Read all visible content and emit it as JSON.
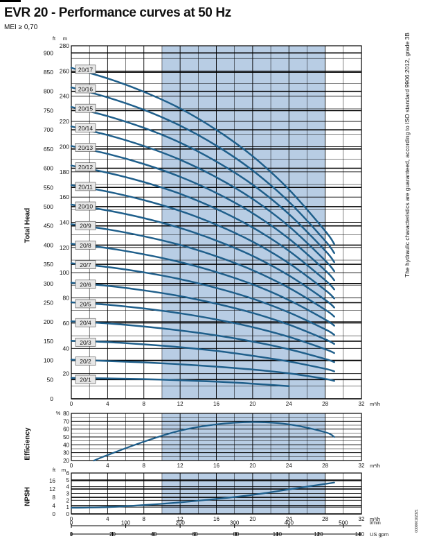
{
  "header": {
    "title": "EVR 20 - Performance curves at 50 Hz",
    "subtitle": "MEI ≥ 0,70"
  },
  "side_note": "The hydraulic characteristics are guaranteed, according to ISO standard 9906:2012, grade 3B",
  "doc_code": "000000102321",
  "colors": {
    "curve": "#1f5f8b",
    "shaded_region": "#b8cde4",
    "grid": "#000000",
    "label_box": "#e6e6e6"
  },
  "chart_data": [
    {
      "type": "line",
      "name": "head",
      "ylabel": "Total Head",
      "y_unit_left": "ft",
      "y_unit_right": "m",
      "x_unit": "m³/h",
      "xlim": [
        0,
        32
      ],
      "ylim": [
        0,
        280
      ],
      "ft_ticks": [
        0,
        50,
        100,
        150,
        200,
        250,
        300,
        350,
        400,
        450,
        500,
        550,
        600,
        650,
        700,
        750,
        800,
        850,
        900
      ],
      "m_ticks": [
        20,
        40,
        60,
        80,
        100,
        120,
        140,
        160,
        180,
        200,
        220,
        240,
        260,
        280
      ],
      "x_ticks": [
        0,
        4,
        8,
        12,
        16,
        20,
        24,
        28,
        32
      ],
      "shaded_x_range": [
        10,
        28
      ],
      "series": [
        {
          "name": "20/1",
          "x": [
            0,
            4,
            8,
            12,
            16,
            20,
            24
          ],
          "y": [
            16.5,
            16.2,
            15.6,
            14.7,
            13.6,
            12.0,
            10.0
          ]
        },
        {
          "name": "20/2",
          "x": [
            0,
            4,
            8,
            12,
            16,
            20,
            24,
            28,
            29
          ],
          "y": [
            31.0,
            30.0,
            28.9,
            27.4,
            25.5,
            23.2,
            20.2,
            15.8,
            14.2
          ]
        },
        {
          "name": "20/3",
          "x": [
            0,
            4,
            8,
            12,
            16,
            20,
            24,
            28,
            29
          ],
          "y": [
            46.0,
            45.0,
            43.2,
            40.9,
            38.0,
            34.1,
            29.6,
            23.8,
            21.8
          ]
        },
        {
          "name": "20/4",
          "x": [
            0,
            4,
            8,
            12,
            16,
            20,
            24,
            28,
            29
          ],
          "y": [
            61.5,
            59.8,
            57.3,
            54.2,
            50.3,
            45.4,
            39.3,
            31.6,
            29.1
          ]
        },
        {
          "name": "20/5",
          "x": [
            0,
            4,
            8,
            12,
            16,
            20,
            24,
            28,
            29
          ],
          "y": [
            76.5,
            74.6,
            71.6,
            67.8,
            62.9,
            56.8,
            49.1,
            39.4,
            36.3
          ]
        },
        {
          "name": "20/6",
          "x": [
            0,
            4,
            8,
            12,
            16,
            20,
            24,
            28,
            29
          ],
          "y": [
            92.0,
            89.6,
            86.0,
            81.4,
            75.4,
            68.1,
            58.8,
            47.2,
            43.5
          ]
        },
        {
          "name": "20/7",
          "x": [
            0,
            4,
            8,
            12,
            16,
            20,
            24,
            28,
            29
          ],
          "y": [
            107.5,
            104.5,
            100.3,
            94.9,
            87.9,
            79.4,
            68.5,
            55.1,
            50.8
          ]
        },
        {
          "name": "20/8",
          "x": [
            0,
            4,
            8,
            12,
            16,
            20,
            24,
            28,
            29
          ],
          "y": [
            123.0,
            119.5,
            114.6,
            108.4,
            100.5,
            90.7,
            78.3,
            62.9,
            58.0
          ]
        },
        {
          "name": "20/9",
          "x": [
            0,
            4,
            8,
            12,
            16,
            20,
            24,
            28,
            29
          ],
          "y": [
            138.5,
            134.4,
            128.9,
            122.0,
            113.0,
            102.0,
            88.0,
            70.7,
            65.2
          ]
        },
        {
          "name": "20/10",
          "x": [
            0,
            4,
            8,
            12,
            16,
            20,
            24,
            28,
            29
          ],
          "y": [
            154.0,
            149.4,
            143.3,
            135.5,
            125.5,
            113.3,
            97.8,
            78.5,
            72.4
          ]
        },
        {
          "name": "20/11",
          "x": [
            0,
            4,
            8,
            12,
            16,
            20,
            24,
            28,
            29
          ],
          "y": [
            169.5,
            164.3,
            157.6,
            149.0,
            138.1,
            124.6,
            107.5,
            86.3,
            79.6
          ]
        },
        {
          "name": "20/12",
          "x": [
            0,
            4,
            8,
            12,
            16,
            20,
            24,
            28,
            29
          ],
          "y": [
            185.0,
            179.3,
            171.9,
            162.6,
            150.6,
            135.9,
            117.3,
            94.1,
            86.8
          ]
        },
        {
          "name": "20/13",
          "x": [
            0,
            4,
            8,
            12,
            16,
            20,
            24,
            28,
            29
          ],
          "y": [
            200.5,
            194.3,
            186.2,
            176.1,
            163.2,
            147.2,
            127.0,
            101.9,
            94.0
          ]
        },
        {
          "name": "20/14",
          "x": [
            0,
            4,
            8,
            12,
            16,
            20,
            24,
            28,
            29
          ],
          "y": [
            216.0,
            209.2,
            200.5,
            189.6,
            175.7,
            158.5,
            136.8,
            109.7,
            101.2
          ]
        },
        {
          "name": "20/15",
          "x": [
            0,
            4,
            8,
            12,
            16,
            20,
            24,
            28,
            29
          ],
          "y": [
            231.5,
            224.2,
            214.9,
            203.2,
            188.2,
            169.8,
            146.5,
            117.5,
            108.4
          ]
        },
        {
          "name": "20/16",
          "x": [
            0,
            4,
            8,
            12,
            16,
            20,
            24,
            28,
            29
          ],
          "y": [
            247.0,
            239.1,
            229.2,
            216.7,
            200.8,
            181.1,
            156.3,
            125.3,
            115.6
          ]
        },
        {
          "name": "20/17",
          "x": [
            0,
            4,
            8,
            12,
            16,
            20,
            24,
            28,
            29
          ],
          "y": [
            262.5,
            254.1,
            243.5,
            230.3,
            213.3,
            192.4,
            166.0,
            133.2,
            122.8
          ]
        }
      ]
    },
    {
      "type": "line",
      "name": "efficiency",
      "ylabel": "Efficiency",
      "y_unit": "%",
      "x_unit": "m³/h",
      "xlim": [
        0,
        32
      ],
      "ylim": [
        20,
        80
      ],
      "y_ticks": [
        20,
        30,
        40,
        50,
        60,
        70,
        80
      ],
      "x_ticks": [
        0,
        4,
        8,
        12,
        16,
        20,
        24,
        28,
        32
      ],
      "shaded_x_range": [
        10,
        28
      ],
      "series": [
        {
          "x": [
            2.5,
            4,
            8,
            12,
            16,
            20,
            24,
            28,
            29
          ],
          "y": [
            20,
            27,
            44,
            58,
            66,
            69,
            66,
            56,
            50
          ]
        }
      ]
    },
    {
      "type": "line",
      "name": "npsh",
      "ylabel": "NPSH",
      "y_unit_left": "ft",
      "y_unit_right": "m",
      "x_unit": "m³/h",
      "xlim": [
        0,
        32
      ],
      "ylim": [
        0,
        6
      ],
      "m_ticks": [
        0,
        1,
        2,
        3,
        4,
        5,
        6
      ],
      "ft_ticks": [
        0,
        4,
        8,
        12,
        16
      ],
      "x_ticks": [
        0,
        4,
        8,
        12,
        16,
        20,
        24,
        28,
        32
      ],
      "shaded_x_range": [
        10,
        28
      ],
      "secondary_axes": [
        {
          "unit": "l/min",
          "ticks": [
            0,
            100,
            200,
            300,
            400,
            500
          ]
        },
        {
          "unit": "US gpm",
          "ticks": [
            0,
            20,
            40,
            60,
            80,
            100,
            120,
            140
          ]
        }
      ],
      "series": [
        {
          "x": [
            0,
            4,
            8,
            12,
            16,
            20,
            24,
            29
          ],
          "y": [
            0.9,
            1.0,
            1.3,
            1.7,
            2.2,
            2.8,
            3.6,
            4.6
          ]
        }
      ]
    }
  ]
}
